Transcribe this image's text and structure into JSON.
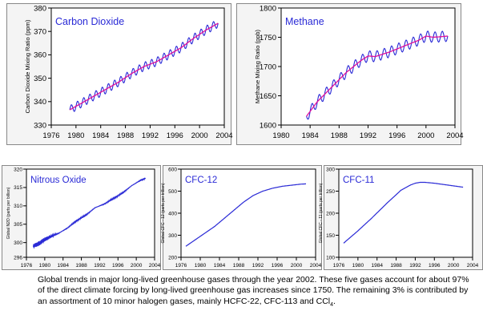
{
  "caption": {
    "text": "Global trends in major long-lived greenhouse gases through the year 2002.  These five gases account for about 97% of the direct climate forcing by long-lived greenhouse gas increases since 1750.  The remaining 3% is contributed by an assortment of 10 minor halogen gases, mainly HCFC-22, CFC-113 and CCl",
    "subscript": "4",
    "end": "."
  },
  "colors": {
    "series": "#2a2ad6",
    "trend": "#e0109a",
    "frame": "#888888",
    "plot_bg": "#ffffff"
  },
  "chart_data": [
    {
      "type": "line",
      "title": "Carbon Dioxide",
      "ylabel": "Carbon Dioxide Mixing Ratio (ppm)",
      "xlabel": "",
      "xlim": [
        1976,
        2004
      ],
      "ylim": [
        330,
        380
      ],
      "xticks": [
        "1976",
        "1980",
        "1984",
        "1988",
        "1992",
        "1996",
        "2000",
        "2004"
      ],
      "yticks": [
        "330",
        "340",
        "350",
        "360",
        "370",
        "380"
      ],
      "grid": false,
      "series": [
        {
          "x": [
            1979,
            1981,
            1983,
            1985,
            1987,
            1989,
            1991,
            1993,
            1995,
            1997,
            1999,
            2001,
            2003
          ],
          "values": [
            336.5,
            339.5,
            342.5,
            345.5,
            348.5,
            352.0,
            355.0,
            357.0,
            360.0,
            363.0,
            367.0,
            370.5,
            373.5
          ],
          "seasonal_amplitude": 1.8
        }
      ],
      "trend_line": true
    },
    {
      "type": "line",
      "title": "Methane",
      "ylabel": "Methane Mixing Ratio (ppb)",
      "xlabel": "",
      "xlim": [
        1980,
        2004
      ],
      "ylim": [
        1600,
        1800
      ],
      "xticks": [
        "1980",
        "1984",
        "1988",
        "1992",
        "1996",
        "2000",
        "2004"
      ],
      "yticks": [
        "1600",
        "1650",
        "1700",
        "1750",
        "1800"
      ],
      "grid": false,
      "series": [
        {
          "x": [
            1983.5,
            1985,
            1987,
            1989,
            1991,
            1992,
            1993,
            1995,
            1997,
            1999,
            2000,
            2001,
            2003
          ],
          "values": [
            1615,
            1640,
            1665,
            1690,
            1710,
            1718,
            1717,
            1725,
            1735,
            1745,
            1752,
            1750,
            1752
          ],
          "seasonal_amplitude": 9
        }
      ],
      "trend_line": true
    },
    {
      "type": "line",
      "title": "Nitrous Oxide",
      "ylabel": "Global N2O (parts per billion)",
      "xlabel": "",
      "xlim": [
        1976,
        2004
      ],
      "ylim": [
        296,
        320
      ],
      "xticks": [
        "1976",
        "1980",
        "1984",
        "1988",
        "1992",
        "1996",
        "2000",
        "2004"
      ],
      "yticks": [
        "296",
        "300",
        "305",
        "310",
        "315",
        "320"
      ],
      "grid": false,
      "series": [
        {
          "x": [
            1977.5,
            1979,
            1981,
            1983,
            1985,
            1987,
            1989,
            1991,
            1993,
            1995,
            1997,
            1999,
            2001,
            2002
          ],
          "values": [
            299.0,
            300.0,
            301.5,
            302.5,
            304.0,
            306.0,
            307.5,
            309.5,
            310.5,
            312.0,
            313.5,
            315.5,
            317.0,
            317.5
          ],
          "noise_amplitude": 0.8
        }
      ]
    },
    {
      "type": "line",
      "title": "CFC-12",
      "ylabel": "Global CFC - 12 (parts per trillion)",
      "xlabel": "",
      "xlim": [
        1976,
        2004
      ],
      "ylim": [
        200,
        600
      ],
      "xticks": [
        "1976",
        "1980",
        "1984",
        "1988",
        "1992",
        "1996",
        "2000",
        "2004"
      ],
      "yticks": [
        "200",
        "300",
        "400",
        "500",
        "600"
      ],
      "grid": false,
      "series": [
        {
          "x": [
            1977,
            1980,
            1983,
            1986,
            1989,
            1991,
            1993,
            1995,
            1997,
            1999,
            2001,
            2002
          ],
          "values": [
            250,
            295,
            340,
            395,
            450,
            480,
            500,
            513,
            522,
            527,
            532,
            533
          ]
        }
      ]
    },
    {
      "type": "line",
      "title": "CFC-11",
      "ylabel": "Global CFC - 11 (parts per trillion)",
      "xlabel": "",
      "xlim": [
        1976,
        2004
      ],
      "ylim": [
        100,
        300
      ],
      "xticks": [
        "1976",
        "1980",
        "1984",
        "1988",
        "1992",
        "1996",
        "2000",
        "2004"
      ],
      "yticks": [
        "100",
        "150",
        "200",
        "250",
        "300"
      ],
      "grid": false,
      "series": [
        {
          "x": [
            1977,
            1980,
            1983,
            1986,
            1989,
            1991,
            1992,
            1993,
            1994,
            1996,
            1998,
            2000,
            2002
          ],
          "values": [
            132,
            160,
            190,
            222,
            252,
            264,
            268,
            270,
            270,
            268,
            265,
            262,
            259
          ]
        }
      ]
    }
  ]
}
